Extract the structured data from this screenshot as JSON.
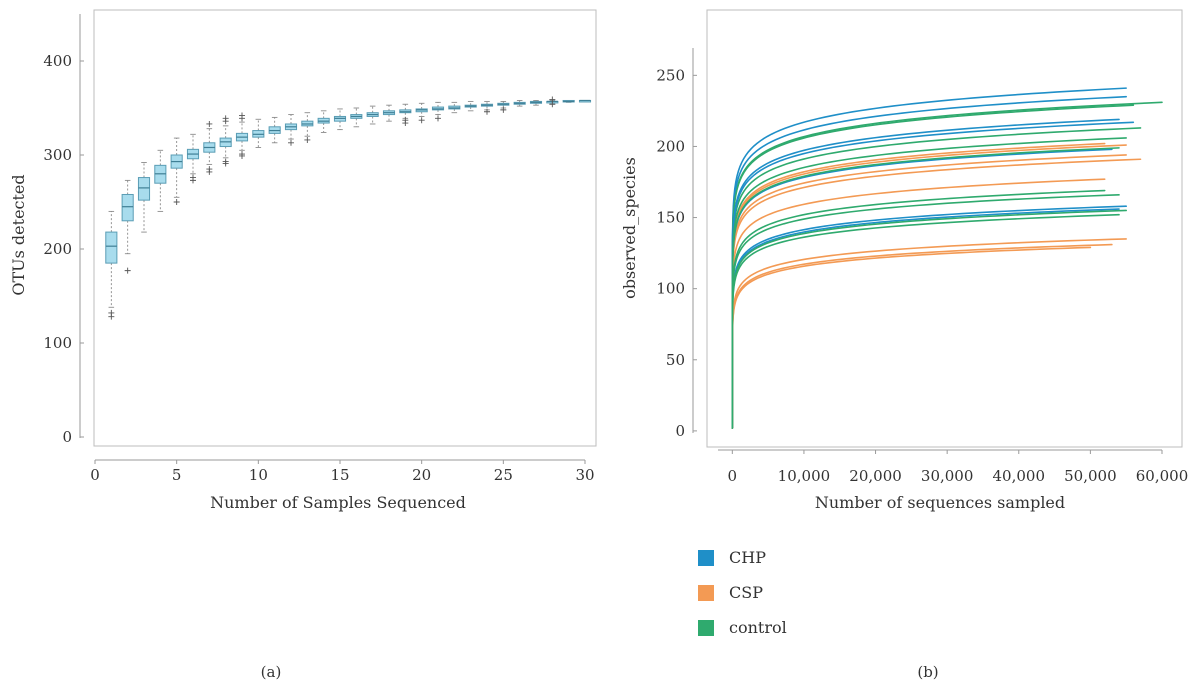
{
  "chart_data": [
    {
      "panel_label": "(a)",
      "type": "box",
      "xlabel": "Number of Samples Sequenced",
      "ylabel": "OTUs detected",
      "xlim": [
        0,
        30
      ],
      "ylim": [
        0,
        450
      ],
      "xticks": [
        "0",
        "5",
        "10",
        "15",
        "20",
        "25",
        "30"
      ],
      "yticks": [
        "0",
        "100",
        "200",
        "300",
        "400"
      ],
      "box_color": "#a8dced",
      "box_edge_color": "#5a9db5",
      "boxes": [
        {
          "x": 1,
          "q1": 185,
          "median": 203,
          "q3": 218,
          "lo": 138,
          "hi": 240,
          "out": [
            128,
            132
          ]
        },
        {
          "x": 2,
          "q1": 230,
          "median": 245,
          "q3": 258,
          "lo": 195,
          "hi": 273,
          "out": [
            177
          ]
        },
        {
          "x": 3,
          "q1": 252,
          "median": 265,
          "q3": 276,
          "lo": 218,
          "hi": 292,
          "out": []
        },
        {
          "x": 4,
          "q1": 270,
          "median": 280,
          "q3": 289,
          "lo": 240,
          "hi": 305,
          "out": []
        },
        {
          "x": 5,
          "q1": 286,
          "median": 293,
          "q3": 300,
          "lo": 255,
          "hi": 318,
          "out": [
            250
          ]
        },
        {
          "x": 6,
          "q1": 296,
          "median": 301,
          "q3": 306,
          "lo": 280,
          "hi": 322,
          "out": [
            273,
            276
          ]
        },
        {
          "x": 7,
          "q1": 303,
          "median": 308,
          "q3": 313,
          "lo": 290,
          "hi": 328,
          "out": [
            282,
            285,
            333
          ]
        },
        {
          "x": 8,
          "q1": 309,
          "median": 314,
          "q3": 318,
          "lo": 297,
          "hi": 331,
          "out": [
            291,
            293,
            336,
            339
          ]
        },
        {
          "x": 9,
          "q1": 315,
          "median": 319,
          "q3": 323,
          "lo": 305,
          "hi": 335,
          "out": [
            299,
            301,
            339,
            342
          ]
        },
        {
          "x": 10,
          "q1": 319,
          "median": 322,
          "q3": 326,
          "lo": 308,
          "hi": 338,
          "out": []
        },
        {
          "x": 11,
          "q1": 323,
          "median": 326,
          "q3": 330,
          "lo": 313,
          "hi": 340,
          "out": []
        },
        {
          "x": 12,
          "q1": 327,
          "median": 330,
          "q3": 333,
          "lo": 317,
          "hi": 343,
          "out": [
            313
          ]
        },
        {
          "x": 13,
          "q1": 331,
          "median": 333,
          "q3": 336,
          "lo": 320,
          "hi": 345,
          "out": [
            316
          ]
        },
        {
          "x": 14,
          "q1": 334,
          "median": 336,
          "q3": 339,
          "lo": 324,
          "hi": 347,
          "out": []
        },
        {
          "x": 15,
          "q1": 336,
          "median": 339,
          "q3": 341,
          "lo": 327,
          "hi": 349,
          "out": []
        },
        {
          "x": 16,
          "q1": 339,
          "median": 341,
          "q3": 343,
          "lo": 330,
          "hi": 350,
          "out": []
        },
        {
          "x": 17,
          "q1": 341,
          "median": 343,
          "q3": 345,
          "lo": 333,
          "hi": 352,
          "out": []
        },
        {
          "x": 18,
          "q1": 343,
          "median": 345,
          "q3": 347,
          "lo": 336,
          "hi": 353,
          "out": []
        },
        {
          "x": 19,
          "q1": 345,
          "median": 346,
          "q3": 348,
          "lo": 339,
          "hi": 354,
          "out": [
            334,
            337
          ]
        },
        {
          "x": 20,
          "q1": 346,
          "median": 348,
          "q3": 349,
          "lo": 341,
          "hi": 355,
          "out": [
            337
          ]
        },
        {
          "x": 21,
          "q1": 348,
          "median": 349,
          "q3": 351,
          "lo": 343,
          "hi": 356,
          "out": [
            339
          ]
        },
        {
          "x": 22,
          "q1": 349,
          "median": 350,
          "q3": 352,
          "lo": 345,
          "hi": 356,
          "out": []
        },
        {
          "x": 23,
          "q1": 351,
          "median": 352,
          "q3": 353,
          "lo": 347,
          "hi": 357,
          "out": []
        },
        {
          "x": 24,
          "q1": 352,
          "median": 353,
          "q3": 354,
          "lo": 348,
          "hi": 357,
          "out": [
            346
          ]
        },
        {
          "x": 25,
          "q1": 353,
          "median": 354,
          "q3": 355,
          "lo": 350,
          "hi": 357,
          "out": [
            348
          ]
        },
        {
          "x": 26,
          "q1": 354,
          "median": 355,
          "q3": 356,
          "lo": 352,
          "hi": 358,
          "out": []
        },
        {
          "x": 27,
          "q1": 355,
          "median": 356,
          "q3": 357,
          "lo": 353,
          "hi": 358,
          "out": []
        },
        {
          "x": 28,
          "q1": 356,
          "median": 357,
          "q3": 357,
          "lo": 355,
          "hi": 358,
          "out": [
            354,
            359
          ]
        },
        {
          "x": 29,
          "q1": 357,
          "median": 357,
          "q3": 358,
          "lo": 356,
          "hi": 358,
          "out": []
        },
        {
          "x": 30,
          "q1": 357,
          "median": 358,
          "q3": 358,
          "lo": 357,
          "hi": 358,
          "out": []
        }
      ]
    },
    {
      "panel_label": "(b)",
      "type": "line",
      "xlabel": "Number of sequences sampled",
      "ylabel": "observed_species",
      "xlim": [
        -2000,
        60000
      ],
      "ylim": [
        -5,
        265
      ],
      "xticks": [
        "0",
        "10,000",
        "20,000",
        "30,000",
        "40,000",
        "50,000",
        "60,000"
      ],
      "yticks": [
        "0",
        "50",
        "100",
        "150",
        "200",
        "250"
      ],
      "grid": false,
      "legend_position": "below",
      "series": [
        {
          "name": "CHP",
          "color": "#1f8fc8",
          "curves": [
            {
              "end_x": 55000,
              "end_y": 241
            },
            {
              "end_x": 55000,
              "end_y": 235
            },
            {
              "end_x": 54000,
              "end_y": 219
            },
            {
              "end_x": 56000,
              "end_y": 217
            },
            {
              "end_x": 53000,
              "end_y": 198
            },
            {
              "end_x": 55000,
              "end_y": 158
            },
            {
              "end_x": 54000,
              "end_y": 156
            }
          ]
        },
        {
          "name": "CSP",
          "color": "#f39a54",
          "curves": [
            {
              "end_x": 52000,
              "end_y": 202
            },
            {
              "end_x": 55000,
              "end_y": 201
            },
            {
              "end_x": 55000,
              "end_y": 194
            },
            {
              "end_x": 57000,
              "end_y": 191
            },
            {
              "end_x": 52000,
              "end_y": 177
            },
            {
              "end_x": 55000,
              "end_y": 135
            },
            {
              "end_x": 53000,
              "end_y": 131
            },
            {
              "end_x": 50000,
              "end_y": 129
            }
          ]
        },
        {
          "name": "control",
          "color": "#2faa6e",
          "curves": [
            {
              "end_x": 60000,
              "end_y": 231
            },
            {
              "end_x": 56000,
              "end_y": 229
            },
            {
              "end_x": 57000,
              "end_y": 213
            },
            {
              "end_x": 55000,
              "end_y": 206
            },
            {
              "end_x": 54000,
              "end_y": 199
            },
            {
              "end_x": 52000,
              "end_y": 169
            },
            {
              "end_x": 54000,
              "end_y": 166
            },
            {
              "end_x": 55000,
              "end_y": 155
            },
            {
              "end_x": 54000,
              "end_y": 152
            }
          ]
        }
      ]
    }
  ]
}
